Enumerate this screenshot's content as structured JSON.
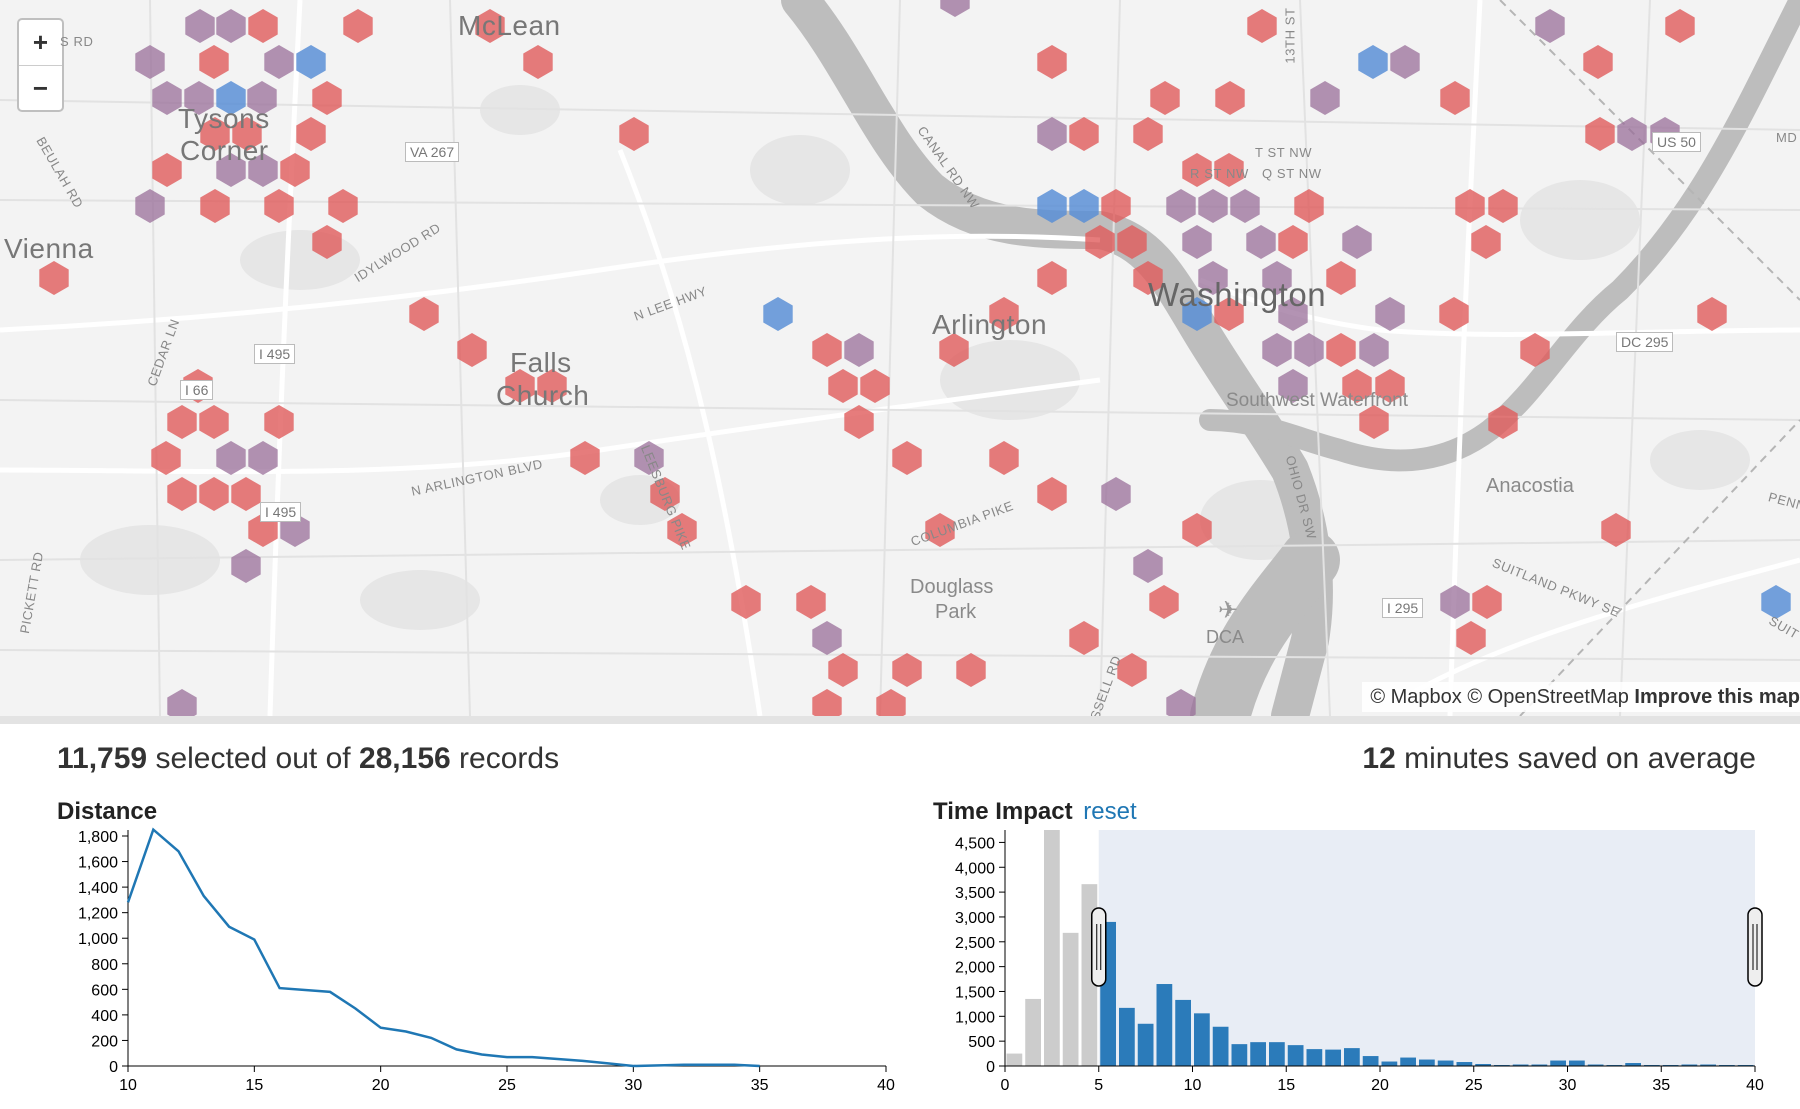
{
  "map": {
    "zoom_in_label": "+",
    "zoom_out_label": "−",
    "cities": [
      {
        "name": "McLean"
      },
      {
        "name": "Tysons"
      },
      {
        "name": "Corner"
      },
      {
        "name": "Vienna"
      },
      {
        "name": "Falls"
      },
      {
        "name": "Church"
      },
      {
        "name": "Arlington"
      },
      {
        "name": "Washington"
      }
    ],
    "places": [
      {
        "name": "Southwest Waterfront"
      },
      {
        "name": "Anacostia"
      },
      {
        "name": "Douglass"
      },
      {
        "name": "Park"
      },
      {
        "name": "DCA"
      }
    ],
    "road_labels": [
      "IDYLWOOD RD",
      "N LEE HWY",
      "CEDAR LN",
      "N ARLINGTON BLVD",
      "LEESBURG PIKE",
      "COLUMBIA PIKE",
      "CANAL RD NW",
      "OHIO DR SW",
      "SUITLAND PKWY SE",
      "BEULAH RD",
      "PICKETT RD",
      "T ST NW",
      "R ST NW",
      "Q ST NW",
      "13TH ST",
      "SSELL RD",
      "PENN",
      "SUIT",
      "S RD",
      "MD"
    ],
    "shields": [
      "VA 267",
      "I 495",
      "I 495",
      "I 66",
      "I 295",
      "DC 295",
      "US 50"
    ],
    "attribution": {
      "mapbox": "© Mapbox",
      "osm": "© OpenStreetMap",
      "improve": "Improve this map"
    },
    "colors": {
      "hex_red": "#e05b5b",
      "hex_blue": "#5b8fd6",
      "water": "#bdbdbd",
      "land": "#f3f3f3"
    }
  },
  "summary": {
    "selected": "11,759",
    "selected_text": "selected out of",
    "total": "28,156",
    "records_text": "records",
    "minutes": "12",
    "minutes_text": "minutes saved on average"
  },
  "distance_chart": {
    "title": "Distance"
  },
  "time_chart": {
    "title": "Time Impact",
    "reset_label": "reset"
  },
  "chart_data": [
    {
      "type": "line",
      "title": "Distance",
      "x": [
        10,
        11,
        12,
        13,
        14,
        15,
        16,
        18,
        19,
        20,
        21,
        22,
        23,
        24,
        25,
        26,
        28,
        29,
        30,
        32,
        34,
        35
      ],
      "series": [
        {
          "values": [
            1280,
            1850,
            1680,
            1330,
            1090,
            990,
            610,
            580,
            450,
            300,
            270,
            220,
            130,
            90,
            70,
            70,
            40,
            20,
            0,
            10,
            10,
            0
          ]
        }
      ],
      "xlim": [
        10,
        40
      ],
      "ylim": [
        0,
        1800
      ],
      "x_ticks": [
        10,
        15,
        20,
        25,
        30,
        35,
        40
      ],
      "y_ticks": [
        0,
        200,
        400,
        600,
        800,
        1000,
        1200,
        1400,
        1600,
        1800
      ],
      "color": "#1f77b4"
    },
    {
      "type": "bar",
      "title": "Time Impact",
      "x": [
        0,
        1,
        2,
        3,
        4,
        5,
        6,
        7,
        8,
        9,
        10,
        11,
        12,
        13,
        14,
        15,
        16,
        17,
        18,
        19,
        20,
        21,
        22,
        23,
        24,
        25,
        26,
        27,
        28,
        29,
        30,
        31,
        32,
        33,
        34,
        35,
        36,
        37,
        38,
        39
      ],
      "values": [
        250,
        1350,
        4750,
        2680,
        3660,
        2900,
        1170,
        850,
        1650,
        1330,
        1060,
        790,
        440,
        480,
        480,
        420,
        340,
        330,
        360,
        200,
        90,
        170,
        130,
        110,
        80,
        40,
        20,
        30,
        30,
        110,
        110,
        30,
        20,
        60,
        20,
        20,
        30,
        30,
        20,
        20
      ],
      "xlim": [
        0,
        40
      ],
      "ylim": [
        0,
        4750
      ],
      "x_ticks": [
        0,
        5,
        10,
        15,
        20,
        25,
        30,
        35,
        40
      ],
      "y_ticks": [
        0,
        500,
        1000,
        1500,
        2000,
        2500,
        3000,
        3500,
        4000,
        4500
      ],
      "brush": [
        5,
        40
      ],
      "selected_color": "#2b7bba",
      "unselected_color": "#cccccc",
      "brush_color": "#e8edf5"
    }
  ]
}
